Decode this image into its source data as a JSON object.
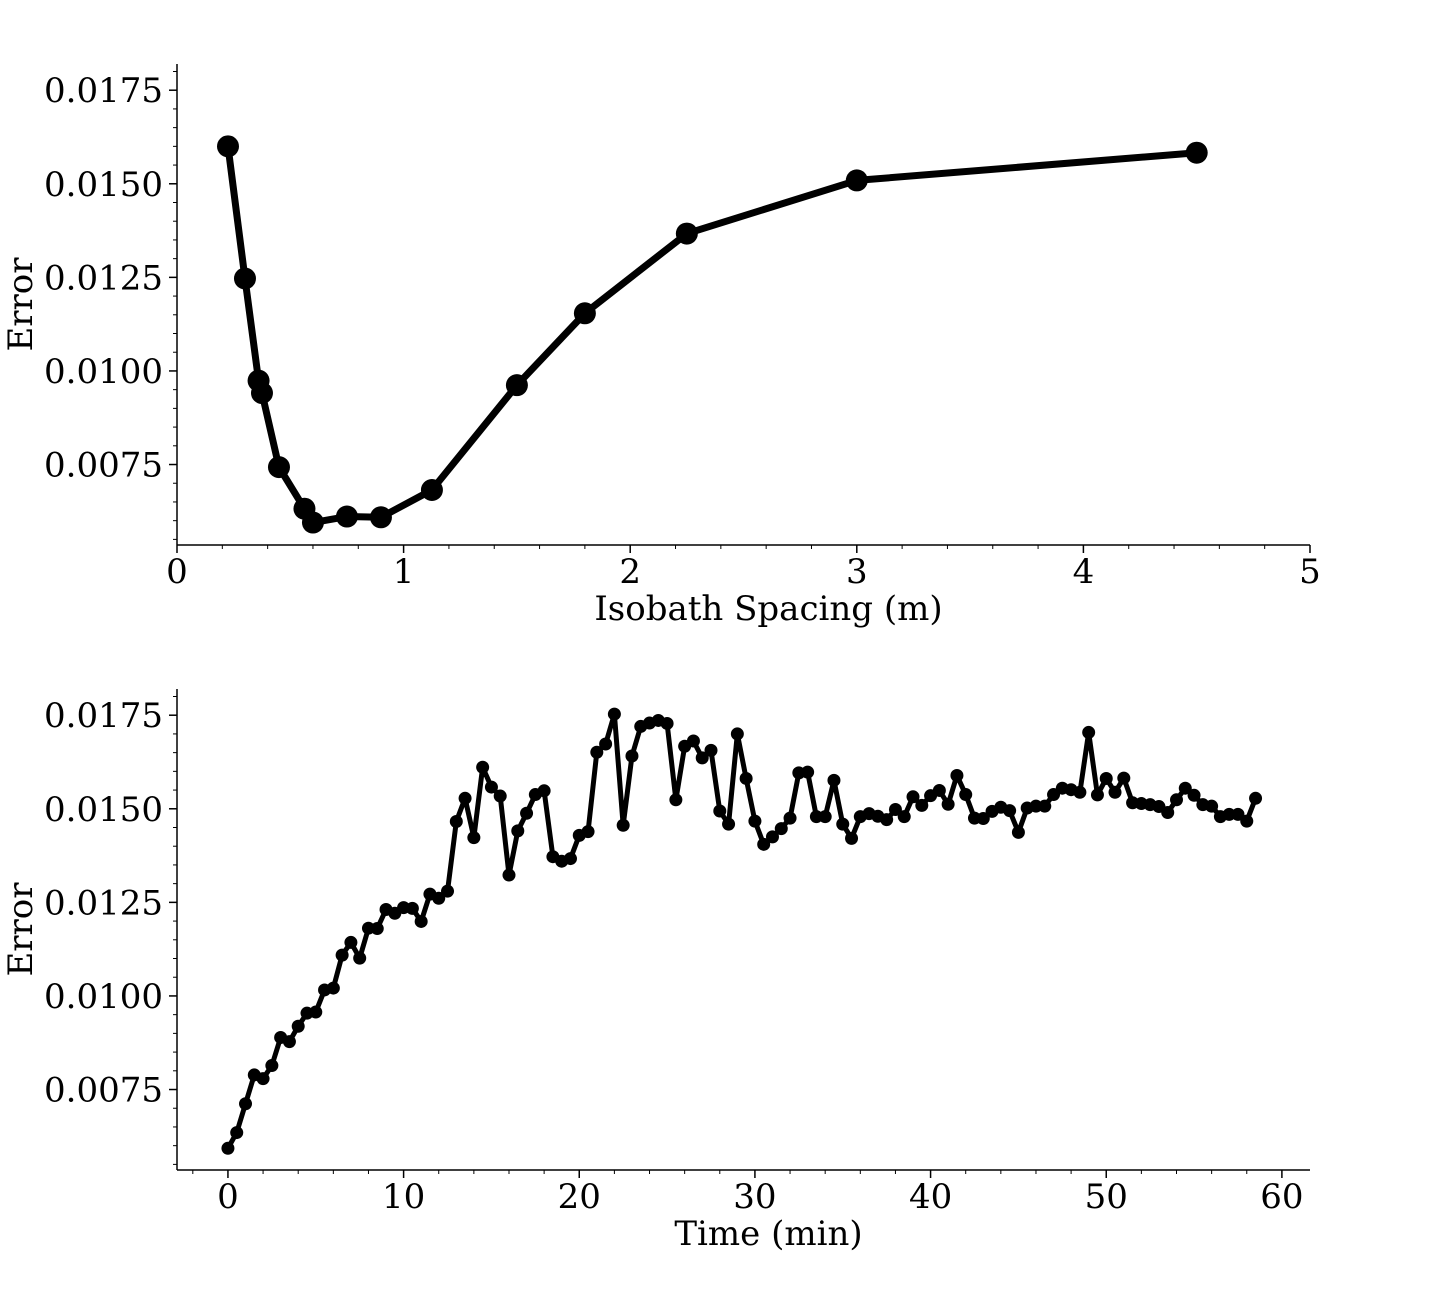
{
  "chart_data": [
    {
      "type": "line",
      "xlabel": "Isobath Spacing (m)",
      "ylabel": "Error",
      "xlim": [
        0,
        5
      ],
      "ylim": [
        0.00535,
        0.0182
      ],
      "xticks": [
        0,
        1,
        2,
        3,
        4,
        5
      ],
      "xtick_labels": [
        "0",
        "1",
        "2",
        "3",
        "4",
        "5"
      ],
      "yticks": [
        0.0075,
        0.01,
        0.0125,
        0.015,
        0.0175
      ],
      "ytick_labels": [
        "0.0075",
        "0.0100",
        "0.0125",
        "0.0150",
        "0.0175"
      ],
      "grid": false,
      "series": [
        {
          "color": "#000000",
          "marker": "circle-large",
          "x": [
            0.225,
            0.3,
            0.36,
            0.375,
            0.45,
            0.5625,
            0.6,
            0.75,
            0.9,
            1.125,
            1.5,
            1.8,
            2.25,
            3.0,
            4.5
          ],
          "y": [
            0.016,
            0.01247,
            0.00974,
            0.00941,
            0.00743,
            0.00632,
            0.00595,
            0.00611,
            0.00609,
            0.00682,
            0.00962,
            0.01154,
            0.01367,
            0.01509,
            0.01583
          ]
        }
      ]
    },
    {
      "type": "line",
      "xlabel": "Time (min)",
      "ylabel": "Error",
      "xlim": [
        -2.9,
        61.6
      ],
      "ylim": [
        0.00535,
        0.0182
      ],
      "xticks": [
        0,
        10,
        20,
        30,
        40,
        50,
        60
      ],
      "xtick_labels": [
        "0",
        "10",
        "20",
        "30",
        "40",
        "50",
        "60"
      ],
      "yticks": [
        0.0075,
        0.01,
        0.0125,
        0.015,
        0.0175
      ],
      "ytick_labels": [
        "0.0075",
        "0.0100",
        "0.0125",
        "0.0150",
        "0.0175"
      ],
      "grid": false,
      "series": [
        {
          "color": "#000000",
          "marker": "circle-small",
          "x": [
            0,
            0.5,
            1,
            1.5,
            2,
            2.5,
            3,
            3.5,
            4,
            4.5,
            5,
            5.5,
            6,
            6.5,
            7,
            7.5,
            8,
            8.5,
            9,
            9.5,
            10,
            10.5,
            11,
            11.5,
            12,
            12.5,
            13,
            13.5,
            14,
            14.5,
            15,
            15.5,
            16,
            16.5,
            17,
            17.5,
            18,
            18.5,
            19,
            19.5,
            20,
            20.5,
            21,
            21.5,
            22,
            22.5,
            23,
            23.5,
            24,
            24.5,
            25,
            25.5,
            26,
            26.5,
            27,
            27.5,
            28,
            28.5,
            29,
            29.5,
            30,
            30.5,
            31,
            31.5,
            32,
            32.5,
            33,
            33.5,
            34,
            34.5,
            35,
            35.5,
            36,
            36.5,
            37,
            37.5,
            38,
            38.5,
            39,
            39.5,
            40,
            40.5,
            41,
            41.5,
            42,
            42.5,
            43,
            43.5,
            44,
            44.5,
            45,
            45.5,
            46,
            46.5,
            47,
            47.5,
            48,
            48.5,
            49,
            49.5,
            50,
            50.5,
            51,
            51.5,
            52,
            52.5,
            53,
            53.5,
            54,
            54.5,
            55,
            55.5,
            56,
            56.5,
            57,
            57.5,
            58,
            58.5
          ],
          "y": [
            0.00593,
            0.00635,
            0.00712,
            0.00789,
            0.00779,
            0.00814,
            0.00889,
            0.00878,
            0.00919,
            0.00954,
            0.00957,
            0.01016,
            0.01021,
            0.01109,
            0.01143,
            0.01101,
            0.01181,
            0.0118,
            0.01231,
            0.01221,
            0.01236,
            0.01234,
            0.01199,
            0.01272,
            0.01261,
            0.0128,
            0.01466,
            0.01528,
            0.01423,
            0.01611,
            0.01558,
            0.01534,
            0.01323,
            0.01441,
            0.01488,
            0.01538,
            0.01548,
            0.01372,
            0.0136,
            0.01367,
            0.01429,
            0.01439,
            0.01651,
            0.01673,
            0.01753,
            0.01456,
            0.01641,
            0.0172,
            0.01729,
            0.01736,
            0.01728,
            0.01524,
            0.01667,
            0.01681,
            0.01636,
            0.01656,
            0.01494,
            0.01459,
            0.017,
            0.01581,
            0.01467,
            0.01405,
            0.01425,
            0.01447,
            0.01475,
            0.01596,
            0.01598,
            0.01479,
            0.01479,
            0.01576,
            0.01459,
            0.01421,
            0.01479,
            0.01487,
            0.0148,
            0.01471,
            0.01498,
            0.01479,
            0.01532,
            0.01509,
            0.01535,
            0.01549,
            0.01512,
            0.01589,
            0.01538,
            0.01475,
            0.01474,
            0.01493,
            0.01504,
            0.01495,
            0.01437,
            0.01502,
            0.01507,
            0.01507,
            0.01538,
            0.01555,
            0.01551,
            0.01544,
            0.01704,
            0.01537,
            0.01581,
            0.01544,
            0.01582,
            0.01516,
            0.01514,
            0.01511,
            0.01506,
            0.0149,
            0.01524,
            0.01555,
            0.01536,
            0.01511,
            0.01507,
            0.01479,
            0.01485,
            0.01485,
            0.01467,
            0.01528
          ]
        }
      ]
    }
  ]
}
